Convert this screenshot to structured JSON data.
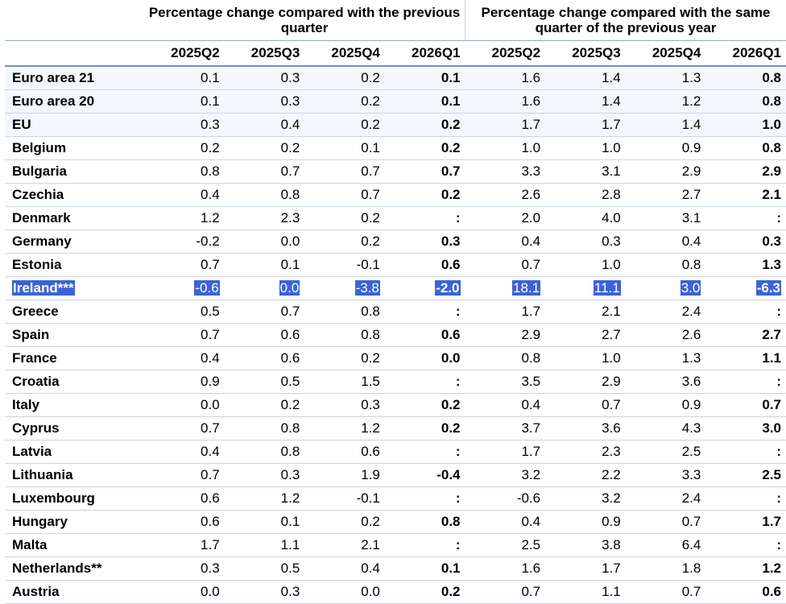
{
  "header": {
    "group1": "Percentage change compared with the previous quarter",
    "group2": "Percentage change compared with the same quarter of the previous year",
    "quarters": [
      "2025Q2",
      "2025Q3",
      "2025Q4",
      "2026Q1",
      "2025Q2",
      "2025Q3",
      "2025Q4",
      "2026Q1"
    ]
  },
  "rows": [
    {
      "name": "Euro area 21",
      "values": [
        "0.1",
        "0.3",
        "0.2",
        "0.1",
        "1.6",
        "1.4",
        "1.3",
        "0.8"
      ]
    },
    {
      "name": "Euro area 20",
      "values": [
        "0.1",
        "0.3",
        "0.2",
        "0.1",
        "1.6",
        "1.4",
        "1.2",
        "0.8"
      ]
    },
    {
      "name": "EU",
      "values": [
        "0.3",
        "0.4",
        "0.2",
        "0.2",
        "1.7",
        "1.7",
        "1.4",
        "1.0"
      ]
    },
    {
      "name": "Belgium",
      "values": [
        "0.2",
        "0.2",
        "0.1",
        "0.2",
        "1.0",
        "1.0",
        "0.9",
        "0.8"
      ]
    },
    {
      "name": "Bulgaria",
      "values": [
        "0.8",
        "0.7",
        "0.7",
        "0.7",
        "3.3",
        "3.1",
        "2.9",
        "2.9"
      ]
    },
    {
      "name": "Czechia",
      "values": [
        "0.4",
        "0.8",
        "0.7",
        "0.2",
        "2.6",
        "2.8",
        "2.7",
        "2.1"
      ]
    },
    {
      "name": "Denmark",
      "values": [
        "1.2",
        "2.3",
        "0.2",
        ":",
        "2.0",
        "4.0",
        "3.1",
        ":"
      ]
    },
    {
      "name": "Germany",
      "values": [
        "-0.2",
        "0.0",
        "0.2",
        "0.3",
        "0.4",
        "0.3",
        "0.4",
        "0.3"
      ]
    },
    {
      "name": "Estonia",
      "values": [
        "0.7",
        "0.1",
        "-0.1",
        "0.6",
        "0.7",
        "1.0",
        "0.8",
        "1.3"
      ]
    },
    {
      "name": "Ireland***",
      "values": [
        "-0.6",
        "0.0",
        "-3.8",
        "-2.0",
        "18.1",
        "11.1",
        "3.0",
        "-6.3"
      ]
    },
    {
      "name": "Greece",
      "values": [
        "0.5",
        "0.7",
        "0.8",
        ":",
        "1.7",
        "2.1",
        "2.4",
        ":"
      ]
    },
    {
      "name": "Spain",
      "values": [
        "0.7",
        "0.6",
        "0.8",
        "0.6",
        "2.9",
        "2.7",
        "2.6",
        "2.7"
      ]
    },
    {
      "name": "France",
      "values": [
        "0.4",
        "0.6",
        "0.2",
        "0.0",
        "0.8",
        "1.0",
        "1.3",
        "1.1"
      ]
    },
    {
      "name": "Croatia",
      "values": [
        "0.9",
        "0.5",
        "1.5",
        ":",
        "3.5",
        "2.9",
        "3.6",
        ":"
      ]
    },
    {
      "name": "Italy",
      "values": [
        "0.0",
        "0.2",
        "0.3",
        "0.2",
        "0.4",
        "0.7",
        "0.9",
        "0.7"
      ]
    },
    {
      "name": "Cyprus",
      "values": [
        "0.7",
        "0.8",
        "1.2",
        "0.2",
        "3.7",
        "3.6",
        "4.3",
        "3.0"
      ]
    },
    {
      "name": "Latvia",
      "values": [
        "0.4",
        "0.8",
        "0.6",
        ":",
        "1.7",
        "2.3",
        "2.5",
        ":"
      ]
    },
    {
      "name": "Lithuania",
      "values": [
        "0.7",
        "0.3",
        "1.9",
        "-0.4",
        "3.2",
        "2.2",
        "3.3",
        "2.5"
      ]
    },
    {
      "name": "Luxembourg",
      "values": [
        "0.6",
        "1.2",
        "-0.1",
        ":",
        "-0.6",
        "3.2",
        "2.4",
        ":"
      ]
    },
    {
      "name": "Hungary",
      "values": [
        "0.6",
        "0.1",
        "0.2",
        "0.8",
        "0.4",
        "0.9",
        "0.7",
        "1.7"
      ]
    },
    {
      "name": "Malta",
      "values": [
        "1.7",
        "1.1",
        "2.1",
        ":",
        "2.5",
        "3.8",
        "6.4",
        ":"
      ]
    },
    {
      "name": "Netherlands**",
      "values": [
        "0.3",
        "0.5",
        "0.4",
        "0.1",
        "1.6",
        "1.7",
        "1.8",
        "1.2"
      ]
    },
    {
      "name": "Austria",
      "values": [
        "0.0",
        "0.3",
        "0.0",
        "0.2",
        "0.7",
        "1.1",
        "0.7",
        "0.6"
      ]
    }
  ],
  "selected_row": "Ireland***",
  "colors": {
    "selection": "#3b63d6",
    "rule": "#6f8fc9",
    "row_rule": "#c8d4ea"
  }
}
